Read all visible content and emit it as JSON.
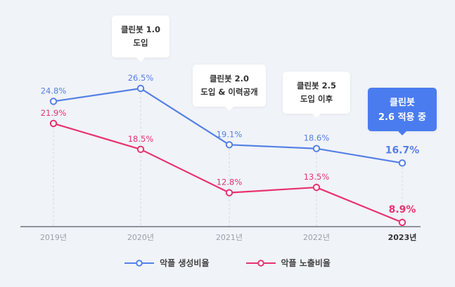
{
  "chart_data": {
    "type": "line",
    "categories": [
      "2019년",
      "2020년",
      "2021년",
      "2022년",
      "2023년"
    ],
    "highlight_category": "2023년",
    "series": [
      {
        "name": "악플 생성비율",
        "color": "#5580e6",
        "values": [
          24.8,
          26.5,
          19.1,
          18.6,
          16.7
        ],
        "labels": [
          "24.8%",
          "26.5%",
          "19.1%",
          "18.6%",
          "16.7%"
        ]
      },
      {
        "name": "악플 노출비율",
        "color": "#e8336f",
        "values": [
          21.9,
          18.5,
          12.8,
          13.5,
          8.9
        ],
        "labels": [
          "21.9%",
          "18.5%",
          "12.8%",
          "13.5%",
          "8.9%"
        ]
      }
    ],
    "annotations": [
      {
        "category": "2020년",
        "lines": [
          "클린봇 1.0",
          "도입"
        ],
        "style": "default"
      },
      {
        "category": "2021년",
        "lines": [
          "클린봇 2.0",
          "도입 & 이력공개"
        ],
        "style": "default"
      },
      {
        "category": "2022년",
        "lines": [
          "클린봇 2.5",
          "도입 이후"
        ],
        "style": "default"
      },
      {
        "category": "2023년",
        "lines": [
          "클린봇",
          "2.6 적용 중"
        ],
        "style": "active"
      }
    ],
    "title": "",
    "xlabel": "",
    "ylabel": "",
    "ylim": [
      8.9,
      26.5
    ],
    "grid": "vertical dashed",
    "legend_position": "bottom-center",
    "colors": {
      "axis": "#8e939c",
      "tick_text": "#9aa0a8",
      "tick_text_highlight": "#333333",
      "gridline": "#d4d8df",
      "background": "#f0f3f8",
      "active_callout": "#4a7cf0"
    }
  }
}
